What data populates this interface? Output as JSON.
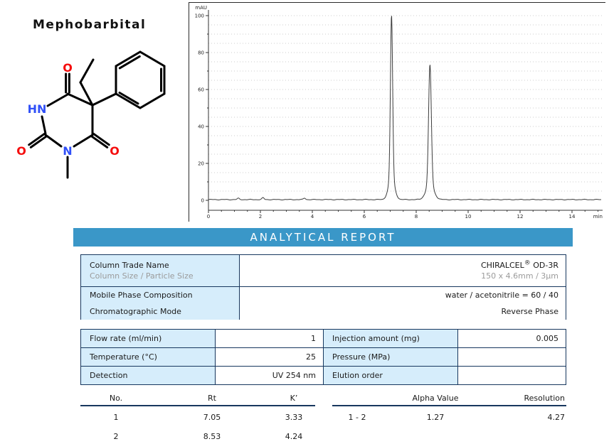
{
  "page": {
    "title": "Mephobarbital"
  },
  "structure": {
    "labels": {
      "hn": "HN",
      "n": "N",
      "o": "O"
    },
    "colors": {
      "nitrogen": "#3050F8",
      "oxygen": "#F50D0D",
      "bond": "#000000"
    }
  },
  "chart_data": {
    "type": "line",
    "title": "",
    "ylabel": "mAU",
    "xlabel": "min",
    "xlim": [
      0,
      15.1
    ],
    "ylim": [
      0,
      105
    ],
    "yticks": [
      0,
      20,
      40,
      60,
      80,
      100
    ],
    "xticks": [
      0,
      2,
      4,
      6,
      8,
      10,
      12,
      14
    ],
    "grid": "dotted horizontal every 5 mAU",
    "line_color": "#3c3c3c",
    "series": [
      {
        "name": "UV 254 nm signal",
        "baseline_mau": 0.4,
        "peaks": [
          {
            "rt": 7.05,
            "height_mau": 100,
            "sigma_min": 0.042
          },
          {
            "rt": 8.53,
            "height_mau": 73,
            "sigma_min": 0.052
          }
        ],
        "noise_bumps": [
          {
            "x_min": 1.15,
            "h_mau": 0.7
          },
          {
            "x_min": 2.1,
            "h_mau": 1.0
          },
          {
            "x_min": 3.7,
            "h_mau": 0.8
          }
        ]
      }
    ]
  },
  "report": {
    "header": "ANALYTICAL REPORT",
    "info_rows": [
      {
        "label": "Column Trade Name",
        "sublabel": "Column Size / Particle Size",
        "value_main": "CHIRALCEL",
        "value_sup": "®",
        "value_tail": " OD-3R",
        "subvalue": "150 x 4.6mm / 3µm"
      },
      {
        "label": "Mobile Phase Composition",
        "value": "water / acetonitrile = 60 / 40"
      },
      {
        "label": "Chromatographic Mode",
        "value": "Reverse Phase"
      }
    ],
    "param_rows": [
      {
        "label1": "Flow rate (ml/min)",
        "value1": "1",
        "label2": "Injection amount (mg)",
        "value2": "0.005"
      },
      {
        "label1": "Temperature (°C)",
        "value1": "25",
        "label2": "Pressure (MPa)",
        "value2": ""
      },
      {
        "label1": "Detection",
        "value1": "UV 254 nm",
        "label2": "Elution order",
        "value2": ""
      }
    ],
    "results": {
      "left": {
        "headers": [
          "No.",
          "Rt",
          "K’"
        ],
        "rows": [
          [
            "1",
            "7.05",
            "3.33"
          ],
          [
            "2",
            "8.53",
            "4.24"
          ]
        ]
      },
      "right": {
        "headers": [
          "",
          "Alpha Value",
          "Resolution"
        ],
        "rows": [
          [
            "1 - 2",
            "1.27",
            "4.27"
          ]
        ]
      }
    }
  },
  "colors": {
    "accent_bar": "#3A97C8",
    "cell_blue": "#D6EDFB",
    "table_border": "#17375E",
    "sub_text": "#9B9B9B"
  }
}
